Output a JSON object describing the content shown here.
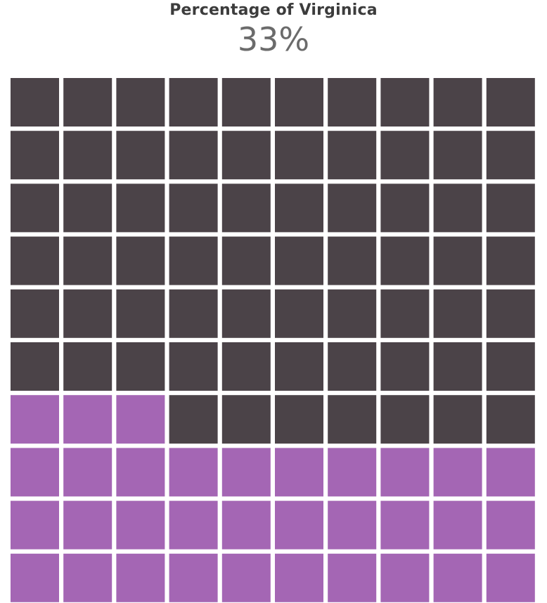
{
  "title": "Percentage of Virginica",
  "value_label": "33%",
  "colors": {
    "filled": "#a466b4",
    "empty": "#4b4348"
  },
  "chart_data": {
    "type": "waffle",
    "title": "Percentage of Virginica",
    "value_label": "33%",
    "percentage": 33,
    "grid_rows": 10,
    "grid_cols": 10,
    "total_cells": 100,
    "filled_cells": 33,
    "fill_order": "bottom-to-top, left-to-right"
  }
}
